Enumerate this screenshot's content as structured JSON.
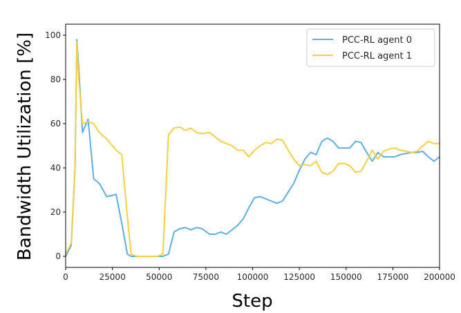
{
  "chart_data": {
    "type": "line",
    "title": "",
    "xlabel": "Step",
    "ylabel": "Bandwidth Utilization [%]",
    "xlim": [
      0,
      200000
    ],
    "ylim": [
      -5,
      105
    ],
    "xticks": [
      0,
      25000,
      50000,
      75000,
      100000,
      125000,
      150000,
      175000,
      200000
    ],
    "yticks": [
      0,
      20,
      40,
      60,
      80,
      100
    ],
    "grid": false,
    "legend_position": "top-right",
    "series": [
      {
        "name": "PCC-RL agent 0",
        "color": "#5DADE2",
        "x": [
          0,
          3000,
          5000,
          6000,
          7000,
          9000,
          12000,
          15000,
          18000,
          22000,
          27000,
          30000,
          33000,
          35000,
          38000,
          42000,
          46000,
          49000,
          52000,
          55000,
          58000,
          61000,
          64000,
          67000,
          70000,
          73000,
          77000,
          80000,
          83000,
          86000,
          89000,
          92000,
          95000,
          98000,
          101000,
          104000,
          107000,
          110000,
          113000,
          116000,
          119000,
          122000,
          125000,
          128000,
          131000,
          134000,
          137000,
          140000,
          143000,
          146000,
          149000,
          152000,
          155000,
          158000,
          161000,
          164000,
          167000,
          170000,
          173000,
          176000,
          179000,
          182000,
          185000,
          188000,
          191000,
          194000,
          197000,
          200000
        ],
        "y": [
          0,
          5,
          40,
          98,
          85,
          56,
          62,
          35,
          33,
          27,
          28,
          15,
          1,
          0,
          0,
          0,
          0,
          0,
          0,
          1,
          11,
          12.5,
          13,
          12,
          13,
          12.5,
          10,
          10,
          11,
          10,
          12,
          14,
          17,
          22,
          26.5,
          27,
          26,
          25,
          24,
          25,
          29,
          33,
          39,
          44,
          47,
          46,
          52,
          53.5,
          52,
          49,
          49,
          49,
          52,
          51.5,
          47,
          43,
          47,
          45,
          45,
          45,
          46,
          46.5,
          47,
          47,
          47.5,
          45,
          43,
          45
        ]
      },
      {
        "name": "PCC-RL agent 1",
        "color": "#F4D03F",
        "x": [
          0,
          3000,
          5000,
          6000,
          7000,
          9000,
          12000,
          15000,
          18000,
          22000,
          27000,
          30000,
          33000,
          35000,
          38000,
          42000,
          46000,
          49000,
          52000,
          55000,
          58000,
          61000,
          64000,
          67000,
          70000,
          73000,
          77000,
          80000,
          83000,
          86000,
          89000,
          92000,
          95000,
          98000,
          101000,
          104000,
          107000,
          110000,
          113000,
          116000,
          119000,
          122000,
          125000,
          128000,
          131000,
          134000,
          137000,
          140000,
          143000,
          146000,
          149000,
          152000,
          155000,
          158000,
          161000,
          164000,
          167000,
          170000,
          173000,
          176000,
          179000,
          182000,
          185000,
          188000,
          191000,
          194000,
          197000,
          200000
        ],
        "y": [
          1,
          6,
          40,
          97,
          80,
          60,
          61,
          60,
          56,
          53,
          48,
          46,
          18,
          1,
          0,
          0,
          0,
          0,
          1,
          55,
          58,
          58.5,
          57,
          58,
          56,
          55.5,
          56,
          54,
          52,
          51,
          50,
          48,
          48,
          45,
          48,
          50,
          51.5,
          51,
          53,
          52.5,
          48,
          44,
          41,
          41.5,
          41,
          43,
          38,
          37,
          38.5,
          42,
          42,
          41,
          38,
          38.5,
          43,
          48,
          44,
          47.5,
          48.5,
          49,
          48,
          47.5,
          47,
          47.5,
          50,
          52,
          51,
          51
        ]
      }
    ]
  }
}
